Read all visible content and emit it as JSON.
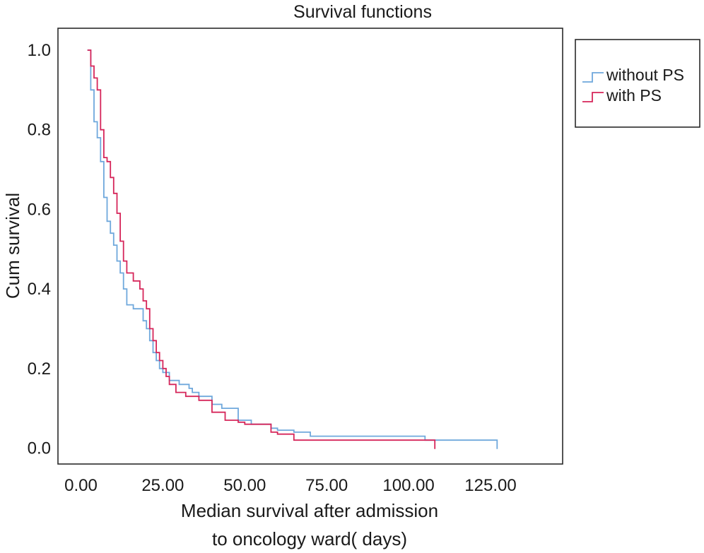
{
  "chart_data": {
    "type": "line",
    "title": "Survival functions",
    "xlabel_lines": [
      "Median survival after admission",
      "to oncology ward( days)"
    ],
    "ylabel": "Cum survival",
    "xlim": [
      -7,
      147
    ],
    "ylim": [
      -0.04,
      1.055
    ],
    "x_ticks": [
      0,
      25,
      50,
      75,
      100,
      125
    ],
    "x_tick_labels": [
      "0.00",
      "25.00",
      "50.00",
      "75.00",
      "100.00",
      "125.00"
    ],
    "y_ticks": [
      0.0,
      0.2,
      0.4,
      0.6,
      0.8,
      1.0
    ],
    "y_tick_labels": [
      "0.0",
      "0.2",
      "0.4",
      "0.6",
      "0.8",
      "1.0"
    ],
    "grid": false,
    "legend_position": "outside-right-top",
    "series": [
      {
        "name": "without PS",
        "color": "#6fa8dc",
        "x": [
          2,
          3,
          4,
          5,
          6,
          7,
          8,
          9,
          10,
          11,
          12,
          13,
          14,
          16,
          18,
          19,
          20,
          21,
          22,
          23,
          24,
          25,
          27,
          30,
          33,
          34,
          36,
          40,
          43,
          48,
          52,
          58,
          60,
          65,
          70,
          105,
          127
        ],
        "y": [
          1.0,
          0.9,
          0.82,
          0.78,
          0.72,
          0.63,
          0.57,
          0.54,
          0.51,
          0.47,
          0.44,
          0.4,
          0.36,
          0.35,
          0.35,
          0.32,
          0.3,
          0.27,
          0.24,
          0.22,
          0.2,
          0.19,
          0.17,
          0.16,
          0.15,
          0.14,
          0.13,
          0.11,
          0.1,
          0.07,
          0.06,
          0.05,
          0.045,
          0.04,
          0.03,
          0.02,
          0.01
        ]
      },
      {
        "name": "with PS",
        "color": "#d6265a",
        "x": [
          2,
          3,
          4,
          5,
          6,
          7,
          8,
          9,
          10,
          11,
          12,
          13,
          14,
          16,
          18,
          19,
          20,
          21,
          22,
          23,
          24,
          25,
          26,
          27,
          29,
          32,
          36,
          40,
          44,
          48,
          50,
          52,
          58,
          60,
          65,
          108
        ],
        "y": [
          1.0,
          0.96,
          0.93,
          0.9,
          0.8,
          0.73,
          0.72,
          0.68,
          0.64,
          0.59,
          0.52,
          0.47,
          0.44,
          0.42,
          0.4,
          0.37,
          0.35,
          0.3,
          0.27,
          0.24,
          0.22,
          0.2,
          0.18,
          0.16,
          0.14,
          0.13,
          0.12,
          0.09,
          0.07,
          0.065,
          0.06,
          0.06,
          0.04,
          0.035,
          0.02,
          0.01
        ]
      }
    ]
  }
}
